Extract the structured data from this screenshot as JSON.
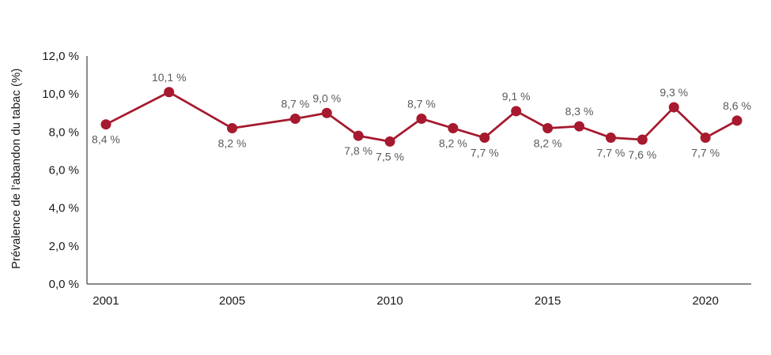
{
  "chart_data": {
    "type": "line",
    "title": "",
    "ylabel": "Prévalence de l’abandon du tabac (%)",
    "xlabel": "",
    "x": [
      2001,
      2003,
      2005,
      2007,
      2008,
      2009,
      2010,
      2011,
      2012,
      2013,
      2014,
      2015,
      2016,
      2017,
      2018,
      2019,
      2020,
      2021
    ],
    "values": [
      8.4,
      10.1,
      8.2,
      8.7,
      9.0,
      7.8,
      7.5,
      8.7,
      8.2,
      7.7,
      9.1,
      8.2,
      8.3,
      7.7,
      7.6,
      9.3,
      7.7,
      8.6
    ],
    "point_labels": [
      "8,4 %",
      "10,1 %",
      "8,2 %",
      "8,7 %",
      "9,0 %",
      "7,8 %",
      "7,5 %",
      "8,7 %",
      "8,2 %",
      "7,7 %",
      "9,1 %",
      "8,2 %",
      "8,3 %",
      "7,7 %",
      "7,6 %",
      "9,3 %",
      "7,7 %",
      "8,6 %"
    ],
    "label_positions": [
      "below",
      "above",
      "below",
      "above",
      "above",
      "below",
      "below",
      "above",
      "below",
      "below",
      "above",
      "below",
      "above",
      "below",
      "below",
      "above",
      "below",
      "above"
    ],
    "ylim": [
      0,
      12
    ],
    "ytick_step": 2,
    "ytick_labels": [
      "0,0 %",
      "2,0 %",
      "4,0 %",
      "6,0 %",
      "8,0 %",
      "10,0 %",
      "12,0 %"
    ],
    "xticks": [
      2001,
      2005,
      2010,
      2015,
      2020
    ],
    "xtick_labels": [
      "2001",
      "2005",
      "2010",
      "2015",
      "2020"
    ],
    "xlim": [
      2000.4,
      2021.45
    ],
    "grid": false,
    "legend": "none",
    "line_color": "#A6192E",
    "marker_color": "#A6192E",
    "point_label_color": "#595959",
    "tick_label_color": "#1a1a1a",
    "axis_color": "#404040"
  }
}
